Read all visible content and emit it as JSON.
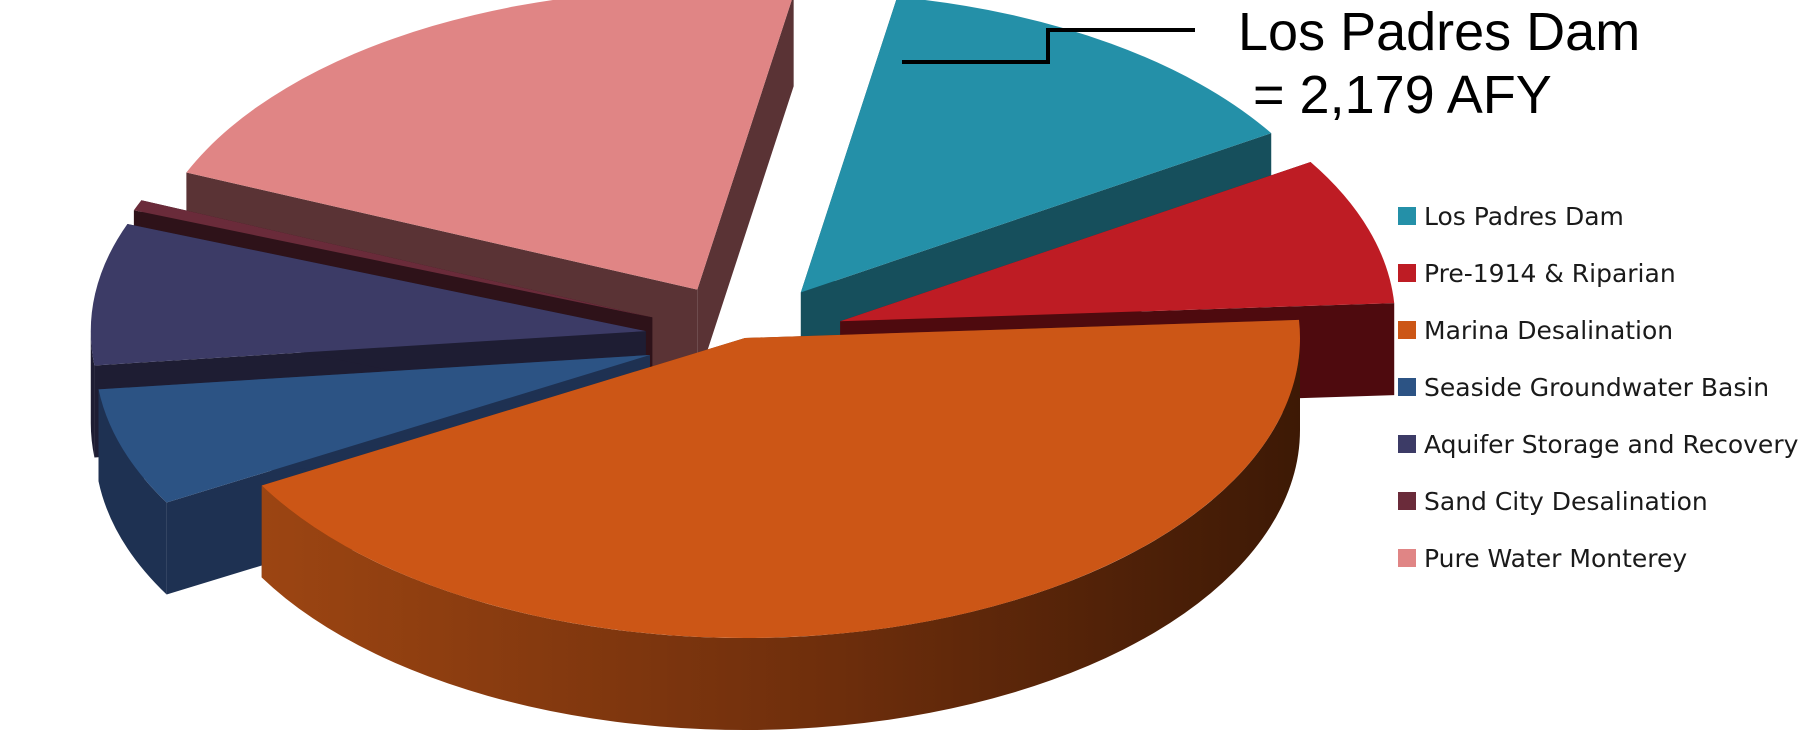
{
  "chart_data": {
    "type": "pie",
    "style": "3d-exploded",
    "title": "",
    "unit": "AFY",
    "legend_position": "right",
    "slices": [
      {
        "name": "Los Padres Dam",
        "value": 2179,
        "color": "#2490a8",
        "side_color": "#164f5c",
        "exploded": true
      },
      {
        "name": "Pre-1914 & Riparian",
        "value": 1300,
        "color": "#be1c24",
        "side_color": "#4e0a0e",
        "exploded": true
      },
      {
        "name": "Marina Desalination",
        "value": 7000,
        "color": "#cc5616",
        "side_color": "#6b2c0b",
        "exploded": false
      },
      {
        "name": "Seaside Groundwater Basin",
        "value": 1040,
        "color": "#2c5384",
        "side_color": "#1e3152",
        "exploded": true
      },
      {
        "name": "Aquifer Storage and Recovery",
        "value": 1250,
        "color": "#3c3b66",
        "side_color": "#1e1d33",
        "exploded": true
      },
      {
        "name": "Sand City Desalination",
        "value": 94,
        "color": "#6a2b3a",
        "side_color": "#2e1219",
        "exploded": true
      },
      {
        "name": "Pure Water Monterey",
        "value": 3500,
        "color": "#e08585",
        "side_color": "#5a3335",
        "exploded": true
      }
    ],
    "annotations": [
      {
        "target": "Los Padres Dam",
        "line1": "Los Padres Dam",
        "line2": " = 2,179 AFY"
      }
    ]
  }
}
